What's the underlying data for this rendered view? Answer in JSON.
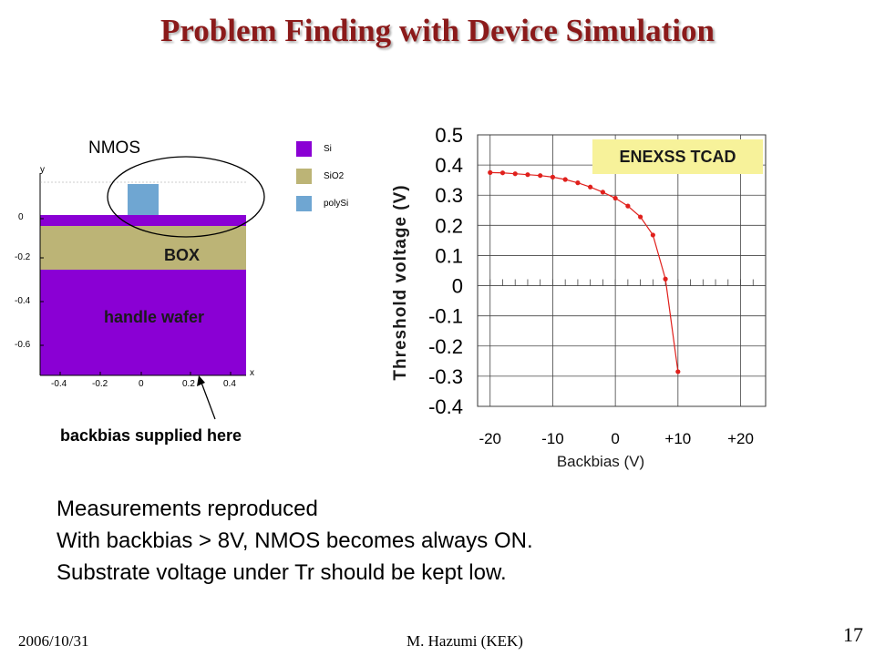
{
  "slide": {
    "title": "Problem Finding with Device Simulation",
    "footer_date": "2006/10/31",
    "footer_author": "M. Hazumi (KEK)",
    "page_number": "17"
  },
  "simulation": {
    "nmos_label": "NMOS",
    "box_label": "BOX",
    "handle_wafer_label": "handle wafer",
    "backbias_note": "backbias supplied here",
    "axis_y_label": "y",
    "axis_x_label": "x",
    "y_ticks": [
      "0",
      "-0.2",
      "-0.4",
      "-0.6"
    ],
    "x_ticks": [
      "-0.4",
      "-0.2",
      "0",
      "0.2",
      "0.4"
    ],
    "legend": [
      {
        "label": "Si",
        "color": "#8a00d4"
      },
      {
        "label": "SiO2",
        "color": "#bcb476"
      },
      {
        "label": "polySi",
        "color": "#6fa6d2"
      }
    ]
  },
  "tcad_badge": "ENEXSS TCAD",
  "body_lines": [
    "Measurements reproduced",
    "With backbias > 8V, NMOS becomes always ON.",
    "Substrate voltage under Tr should be kept low."
  ],
  "chart_data": {
    "type": "line",
    "title": "",
    "xlabel": "Backbias (V)",
    "ylabel": "Threshold voltage (V)",
    "xlim": [
      -22,
      24
    ],
    "ylim": [
      -0.4,
      0.5
    ],
    "x_ticks": [
      {
        "value": -20,
        "label": "-20"
      },
      {
        "value": -10,
        "label": "-10"
      },
      {
        "value": 0,
        "label": "0"
      },
      {
        "value": 10,
        "label": "+10"
      },
      {
        "value": 20,
        "label": "+20"
      }
    ],
    "y_ticks": [
      {
        "value": 0.5,
        "label": "0.5"
      },
      {
        "value": 0.4,
        "label": "0.4"
      },
      {
        "value": 0.3,
        "label": "0.3"
      },
      {
        "value": 0.2,
        "label": "0.2"
      },
      {
        "value": 0.1,
        "label": "0.1"
      },
      {
        "value": 0,
        "label": "0"
      },
      {
        "value": -0.1,
        "label": "-0.1"
      },
      {
        "value": -0.2,
        "label": "-0.2"
      },
      {
        "value": -0.3,
        "label": "-0.3"
      },
      {
        "value": -0.4,
        "label": "-0.4"
      }
    ],
    "grid": true,
    "color": "#e0201c",
    "series": [
      {
        "x": [
          -20,
          -18,
          -16,
          -14,
          -12,
          -10,
          -8,
          -6,
          -4,
          -2,
          0,
          2,
          4,
          6,
          8,
          10
        ],
        "y": [
          0.375,
          0.374,
          0.371,
          0.368,
          0.365,
          0.36,
          0.352,
          0.341,
          0.327,
          0.31,
          0.29,
          0.264,
          0.228,
          0.168,
          0.022,
          -0.285
        ]
      }
    ]
  }
}
